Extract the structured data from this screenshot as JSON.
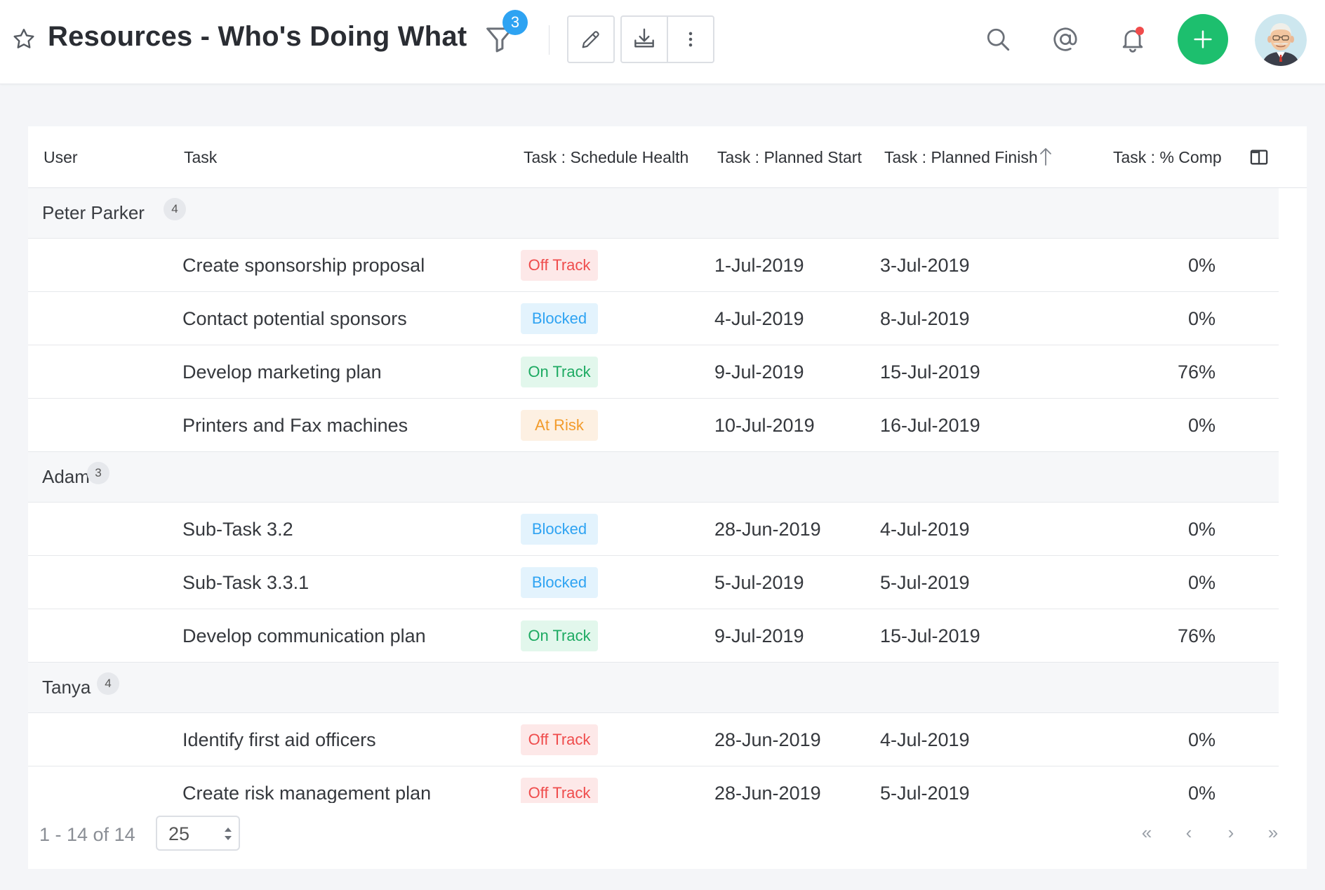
{
  "header": {
    "title": "Resources - Who's Doing What",
    "filter_count": "3",
    "icons": {
      "star": "star-outline-icon",
      "filter": "filter-icon",
      "edit": "pencil-icon",
      "export": "download-tray-icon",
      "more": "vertical-dots-icon",
      "search": "search-icon",
      "mentions": "at-sign-icon",
      "notifications": "bell-icon",
      "add": "plus-icon",
      "avatar": "user-avatar"
    },
    "colors": {
      "add_button": "#1dbf6e",
      "filter_badge": "#2ea3f2",
      "notification_dot": "#f04b4b"
    }
  },
  "table": {
    "columns": {
      "user": "User",
      "task": "Task",
      "health": "Task : Schedule Health",
      "start": "Task : Planned Start",
      "finish": "Task : Planned Finish",
      "pct": "Task : % Comp"
    },
    "sorted_column": "finish",
    "sort_direction": "ascending",
    "groups": [
      {
        "user": "Peter Parker",
        "count": "4",
        "rows": [
          {
            "task": "Create sponsorship proposal",
            "health": "Off Track",
            "health_key": "off",
            "start": "1-Jul-2019",
            "finish": "3-Jul-2019",
            "pct": "0%"
          },
          {
            "task": "Contact potential sponsors",
            "health": "Blocked",
            "health_key": "blocked",
            "start": "4-Jul-2019",
            "finish": "8-Jul-2019",
            "pct": "0%"
          },
          {
            "task": "Develop marketing plan",
            "health": "On Track",
            "health_key": "on",
            "start": "9-Jul-2019",
            "finish": "15-Jul-2019",
            "pct": "76%"
          },
          {
            "task": "Printers and Fax machines",
            "health": "At Risk",
            "health_key": "risk",
            "start": "10-Jul-2019",
            "finish": "16-Jul-2019",
            "pct": "0%"
          }
        ]
      },
      {
        "user": "Adam",
        "count": "3",
        "rows": [
          {
            "task": "Sub-Task 3.2",
            "health": "Blocked",
            "health_key": "blocked",
            "start": "28-Jun-2019",
            "finish": "4-Jul-2019",
            "pct": "0%"
          },
          {
            "task": "Sub-Task 3.3.1",
            "health": "Blocked",
            "health_key": "blocked",
            "start": "5-Jul-2019",
            "finish": "5-Jul-2019",
            "pct": "0%"
          },
          {
            "task": "Develop communication plan",
            "health": "On Track",
            "health_key": "on",
            "start": "9-Jul-2019",
            "finish": "15-Jul-2019",
            "pct": "76%"
          }
        ]
      },
      {
        "user": "Tanya",
        "count": "4",
        "rows": [
          {
            "task": "Identify first aid officers",
            "health": "Off Track",
            "health_key": "off",
            "start": "28-Jun-2019",
            "finish": "4-Jul-2019",
            "pct": "0%"
          },
          {
            "task": "Create risk management plan",
            "health": "Off Track",
            "health_key": "off",
            "start": "28-Jun-2019",
            "finish": "5-Jul-2019",
            "pct": "0%"
          }
        ]
      }
    ],
    "health_colors": {
      "off": "#ef4c4c",
      "blocked": "#2ea3f2",
      "on": "#1daa62",
      "risk": "#f29b2b"
    }
  },
  "pagination": {
    "range": "1 - 14 of 14",
    "page_size": "25",
    "first": "«",
    "prev": "‹",
    "next": "›",
    "last": "»"
  }
}
